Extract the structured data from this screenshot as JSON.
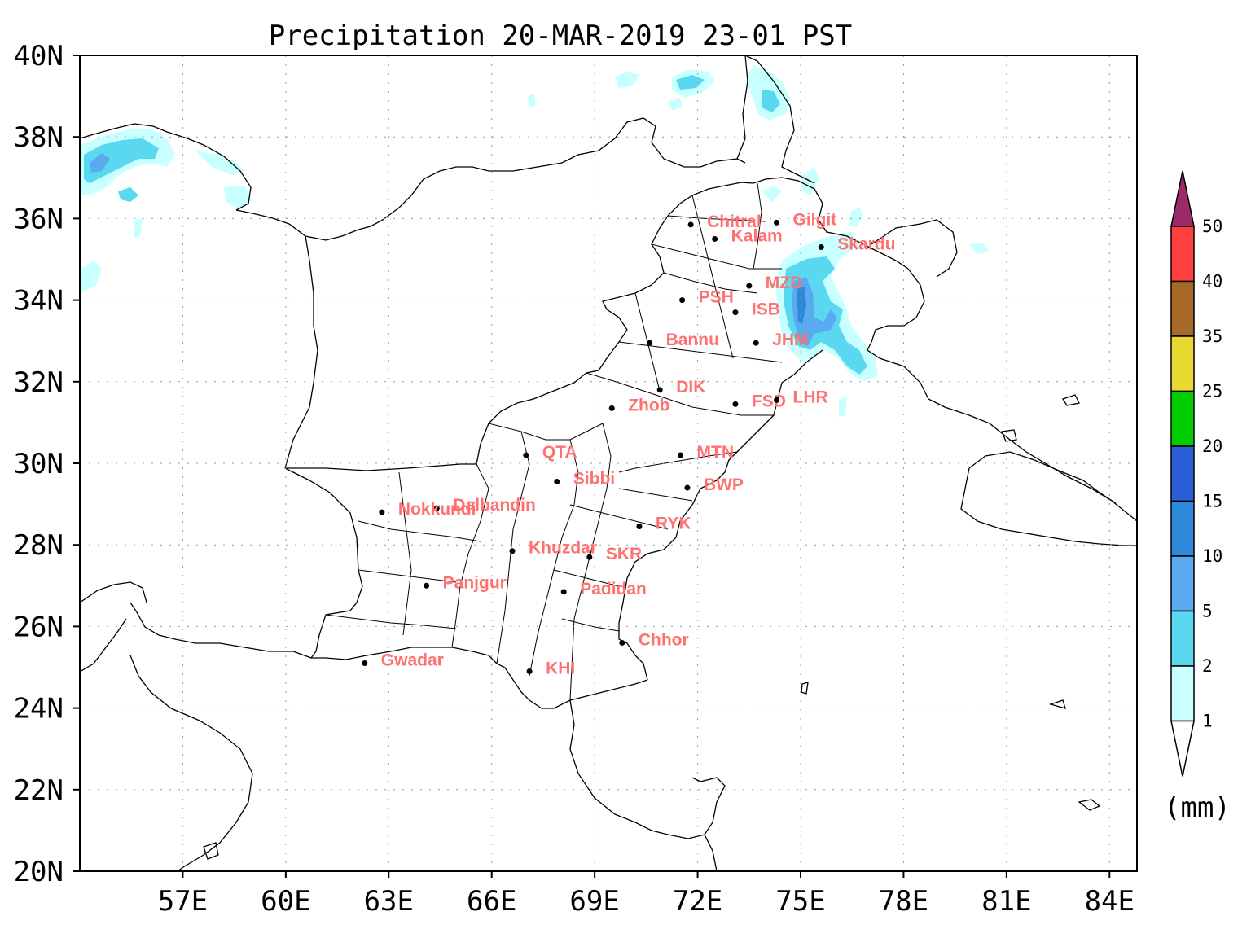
{
  "title": "Precipitation 20-MAR-2019 23-01 PST",
  "unit": "(mm)",
  "lon_labels": [
    "57E",
    "60E",
    "63E",
    "66E",
    "69E",
    "72E",
    "75E",
    "78E",
    "81E",
    "84E"
  ],
  "lat_labels": [
    "20N",
    "22N",
    "24N",
    "26N",
    "28N",
    "30N",
    "32N",
    "34N",
    "36N",
    "38N",
    "40N"
  ],
  "colorbar": {
    "levels": [
      "1",
      "2",
      "5",
      "10",
      "15",
      "20",
      "25",
      "35",
      "40",
      "50"
    ],
    "colors": [
      "#ffffff",
      "#c8ffff",
      "#5ad8f0",
      "#5aaaf0",
      "#2e8ad8",
      "#2a5fd8",
      "#00cc00",
      "#e8d830",
      "#a86a28",
      "#ff4040",
      "#9a2a6a"
    ]
  },
  "cities": [
    {
      "name": "Chitral",
      "lon": 71.8,
      "lat": 35.85
    },
    {
      "name": "Gilgit",
      "lon": 74.3,
      "lat": 35.9
    },
    {
      "name": "Kalam",
      "lon": 72.5,
      "lat": 35.5
    },
    {
      "name": "Skardu",
      "lon": 75.6,
      "lat": 35.3
    },
    {
      "name": "MZD",
      "lon": 73.5,
      "lat": 34.35
    },
    {
      "name": "PSH",
      "lon": 71.55,
      "lat": 34.0
    },
    {
      "name": "ISB",
      "lon": 73.1,
      "lat": 33.7
    },
    {
      "name": "Bannu",
      "lon": 70.6,
      "lat": 32.95
    },
    {
      "name": "JHM",
      "lon": 73.7,
      "lat": 32.95
    },
    {
      "name": "DIK",
      "lon": 70.9,
      "lat": 31.8
    },
    {
      "name": "Zhob",
      "lon": 69.5,
      "lat": 31.35
    },
    {
      "name": "FSD",
      "lon": 73.1,
      "lat": 31.45
    },
    {
      "name": "LHR",
      "lon": 74.3,
      "lat": 31.55
    },
    {
      "name": "QTA",
      "lon": 67.0,
      "lat": 30.2
    },
    {
      "name": "MTN",
      "lon": 71.5,
      "lat": 30.2
    },
    {
      "name": "Sibbi",
      "lon": 67.9,
      "lat": 29.55
    },
    {
      "name": "BWP",
      "lon": 71.7,
      "lat": 29.4
    },
    {
      "name": "Dalbandin",
      "lon": 64.4,
      "lat": 28.9
    },
    {
      "name": "Nokkundi",
      "lon": 62.8,
      "lat": 28.8
    },
    {
      "name": "RYK",
      "lon": 70.3,
      "lat": 28.45
    },
    {
      "name": "Khuzdar",
      "lon": 66.6,
      "lat": 27.85
    },
    {
      "name": "SKR",
      "lon": 68.85,
      "lat": 27.7
    },
    {
      "name": "Panjgur",
      "lon": 64.1,
      "lat": 27.0
    },
    {
      "name": "Padidan",
      "lon": 68.1,
      "lat": 26.85
    },
    {
      "name": "Chhor",
      "lon": 69.8,
      "lat": 25.6
    },
    {
      "name": "Gwadar",
      "lon": 62.3,
      "lat": 25.1
    },
    {
      "name": "KHI",
      "lon": 67.1,
      "lat": 24.9
    }
  ]
}
